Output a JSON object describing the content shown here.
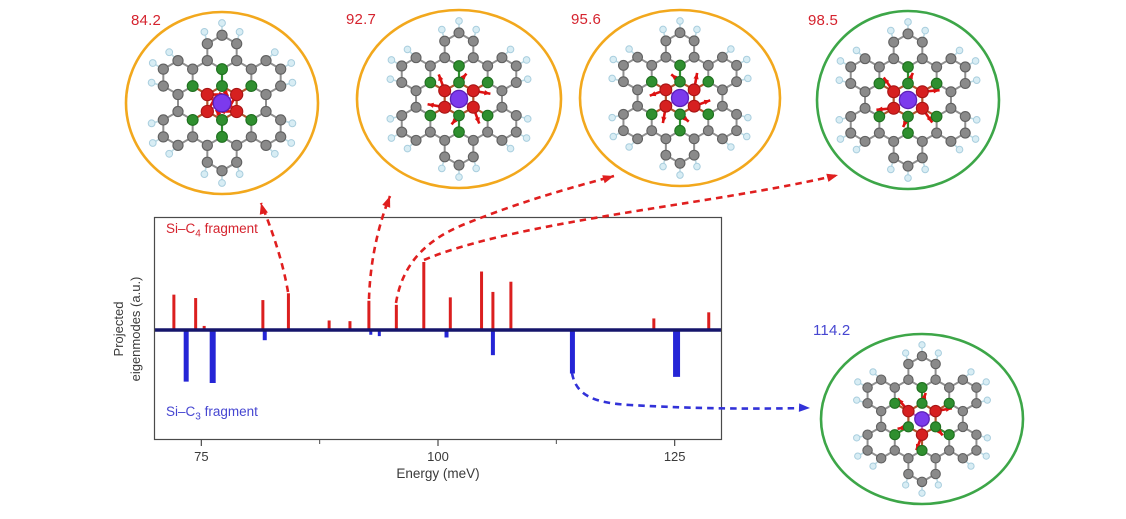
{
  "chart_data": {
    "type": "stem",
    "title": "",
    "xlabel": "Energy (meV)",
    "ylabel": "Projected eigenmodes (a.u.)",
    "ylabel_lines": [
      "Projected",
      "eigenmodes (a.u.)"
    ],
    "xlim": [
      70,
      130
    ],
    "xticks": [
      75,
      100,
      125
    ],
    "minor_xticks": [
      87.5,
      112.5
    ],
    "grid": false,
    "baseline_color": "#15156B",
    "axis_color": "#4a4a4a",
    "tick_label_color": "#3a3a3a",
    "series": [
      {
        "name": "Si–C4 fragment",
        "label_parts": {
          "pre": "Si–C",
          "sub": "4",
          "post": " fragment"
        },
        "color": "#DB1F1F",
        "label_color": "#D5232E",
        "direction": "up",
        "points": [
          [
            72.1,
            0.52
          ],
          [
            74.4,
            0.47
          ],
          [
            75.3,
            0.06
          ],
          [
            81.5,
            0.44
          ],
          [
            84.2,
            0.54
          ],
          [
            88.5,
            0.14
          ],
          [
            90.7,
            0.13
          ],
          [
            92.7,
            0.43
          ],
          [
            95.6,
            0.37
          ],
          [
            98.5,
            1.0
          ],
          [
            101.3,
            0.48
          ],
          [
            104.6,
            0.86
          ],
          [
            105.8,
            0.56
          ],
          [
            107.7,
            0.71
          ],
          [
            122.8,
            0.17
          ],
          [
            128.6,
            0.26
          ]
        ]
      },
      {
        "name": "Si–C3 fragment",
        "label_parts": {
          "pre": "Si–C",
          "sub": "3",
          "post": " fragment"
        },
        "color": "#2525D6",
        "label_color": "#4646D1",
        "direction": "down",
        "points": [
          [
            73.4,
            0.76,
            5
          ],
          [
            76.2,
            0.78,
            6
          ],
          [
            81.7,
            0.15,
            4
          ],
          [
            92.9,
            0.07,
            3
          ],
          [
            93.8,
            0.09,
            3
          ],
          [
            100.9,
            0.11,
            4
          ],
          [
            105.8,
            0.37,
            4
          ],
          [
            114.2,
            0.64,
            5
          ],
          [
            125.2,
            0.69,
            7
          ]
        ]
      }
    ]
  },
  "insets": [
    {
      "label": "84.2",
      "label_color": "#D5232E",
      "ring_color": "#F2A81D",
      "fragment": "Si-C4"
    },
    {
      "label": "92.7",
      "label_color": "#D5232E",
      "ring_color": "#F2A81D",
      "fragment": "Si-C4"
    },
    {
      "label": "95.6",
      "label_color": "#D5232E",
      "ring_color": "#F2A81D",
      "fragment": "Si-C4"
    },
    {
      "label": "98.5",
      "label_color": "#D5232E",
      "ring_color": "#3DA648",
      "fragment": "Si-C4"
    },
    {
      "label": "114.2",
      "label_color": "#4646D1",
      "ring_color": "#3DA648",
      "fragment": "Si-C3"
    }
  ],
  "molecule_colors": {
    "carbon": "#8A8A8A",
    "carbon_stroke": "#616161",
    "hydrogen": "#D8EDF4",
    "hydrogen_stroke": "#A9CEDE",
    "inner_red": "#D62020",
    "inner_red_stroke": "#A81414",
    "ring_green": "#2F8F2F",
    "ring_green_stroke": "#1F6F1F",
    "silicon": "#7C3AED",
    "silicon_stroke": "#5B21B6",
    "si_bond": "#C45EC4",
    "red_bond": "#B0542C",
    "gray_bond": "#8F8F8F",
    "h_bond": "#BCD9E2",
    "arrow": "#DD1111"
  },
  "connector_colors": {
    "red": "#E01F1F",
    "blue": "#3232D8"
  }
}
